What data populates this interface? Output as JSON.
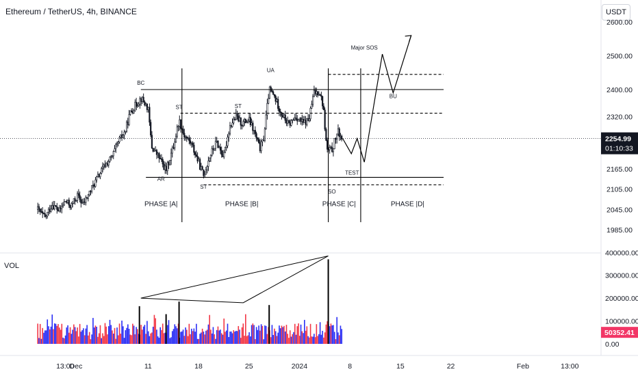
{
  "header": {
    "title": "Ethereum / TetherUS, 4h, BINANCE",
    "currency": "USDT"
  },
  "colors": {
    "up": "#26a69a",
    "down": "#ef5350",
    "candle": "#131722",
    "vol_blue": "#2a2ef5",
    "vol_red": "#f23645",
    "price_tag_bg": "#131722",
    "vol_tag_bg": "#f23666"
  },
  "chart_data": {
    "type": "candlestick",
    "price_axis": {
      "ticks": [
        {
          "value": 2600,
          "label": "2600.00"
        },
        {
          "value": 2500,
          "label": "2500.00"
        },
        {
          "value": 2400,
          "label": "2400.00"
        },
        {
          "value": 2320,
          "label": "2320.00"
        },
        {
          "value": 2165,
          "label": "2165.00"
        },
        {
          "value": 2105,
          "label": "2105.00"
        },
        {
          "value": 2045,
          "label": "2045.00"
        },
        {
          "value": 1985,
          "label": "1985.00"
        }
      ],
      "range": [
        1975,
        2610
      ]
    },
    "volume_axis": {
      "ticks": [
        {
          "value": 400000,
          "label": "400000.00"
        },
        {
          "value": 300000,
          "label": "300000.00"
        },
        {
          "value": 200000,
          "label": "200000.00"
        },
        {
          "value": 100000,
          "label": "100000.00"
        },
        {
          "value": 0,
          "label": "0.00"
        }
      ],
      "label": "VOL"
    },
    "time_axis": {
      "labels": [
        {
          "label": "13:00",
          "day": -0.5
        },
        {
          "label": "Dec",
          "day": 1
        },
        {
          "label": "11",
          "day": 11
        },
        {
          "label": "18",
          "day": 18
        },
        {
          "label": "25",
          "day": 25
        },
        {
          "label": "2024",
          "day": 32
        },
        {
          "label": "8",
          "day": 39
        },
        {
          "label": "15",
          "day": 46
        },
        {
          "label": "22",
          "day": 53
        },
        {
          "label": "Feb",
          "day": 63
        },
        {
          "label": "13:00",
          "day": 69.5
        }
      ]
    },
    "last_price": {
      "value": 2254.99,
      "label": "2254.99",
      "countdown": "01:10:33"
    },
    "last_volume": {
      "value": 50352.41,
      "label": "50352.41"
    },
    "price_path": [
      [
        -4.3,
        2045
      ],
      [
        -3.3,
        2020
      ],
      [
        -2.3,
        2060
      ],
      [
        -1.3,
        2040
      ],
      [
        -0.5,
        2070
      ],
      [
        0.3,
        2055
      ],
      [
        1.2,
        2085
      ],
      [
        2.0,
        2060
      ],
      [
        3.0,
        2100
      ],
      [
        4.0,
        2140
      ],
      [
        5.0,
        2175
      ],
      [
        6.0,
        2200
      ],
      [
        7.0,
        2250
      ],
      [
        7.8,
        2275
      ],
      [
        8.5,
        2330
      ],
      [
        9.3,
        2355
      ],
      [
        10.0,
        2375
      ],
      [
        10.5,
        2360
      ],
      [
        11.0,
        2345
      ],
      [
        11.5,
        2230
      ],
      [
        12.5,
        2200
      ],
      [
        13.5,
        2160
      ],
      [
        14.5,
        2230
      ],
      [
        15.3,
        2310
      ],
      [
        16.0,
        2265
      ],
      [
        17.0,
        2240
      ],
      [
        18.0,
        2185
      ],
      [
        18.7,
        2145
      ],
      [
        19.5,
        2200
      ],
      [
        20.5,
        2245
      ],
      [
        21.5,
        2200
      ],
      [
        22.3,
        2290
      ],
      [
        23.2,
        2320
      ],
      [
        24.0,
        2300
      ],
      [
        25.0,
        2310
      ],
      [
        25.8,
        2270
      ],
      [
        26.5,
        2225
      ],
      [
        27.0,
        2250
      ],
      [
        27.8,
        2400
      ],
      [
        28.5,
        2380
      ],
      [
        29.5,
        2330
      ],
      [
        30.5,
        2295
      ],
      [
        31.5,
        2320
      ],
      [
        32.5,
        2300
      ],
      [
        33.3,
        2310
      ],
      [
        34.0,
        2390
      ],
      [
        34.8,
        2395
      ],
      [
        35.3,
        2350
      ],
      [
        35.8,
        2220
      ],
      [
        36.5,
        2220
      ],
      [
        37.3,
        2275
      ],
      [
        38.0,
        2255
      ]
    ],
    "volume_bars_seed": 42,
    "volume_spikes": [
      {
        "day": 9.8,
        "value": 165000
      },
      {
        "day": 13.5,
        "value": 130000
      },
      {
        "day": 15.3,
        "value": 185000
      },
      {
        "day": 27.8,
        "value": 170000
      },
      {
        "day": 36.0,
        "value": 370000
      }
    ],
    "wyckoff_annotations": {
      "levels": [
        {
          "label": "BC line",
          "price": 2400,
          "from_day": 10,
          "to_day": 52,
          "style": "solid"
        },
        {
          "label": "UA line",
          "price": 2445,
          "from_day": 36,
          "to_day": 52,
          "style": "dashed"
        },
        {
          "label": "ST line",
          "price": 2330,
          "from_day": 15.5,
          "to_day": 52,
          "style": "dashed"
        },
        {
          "label": "AR line",
          "price": 2140,
          "from_day": 10.7,
          "to_day": 52,
          "style": "solid"
        },
        {
          "label": "Lower ST line",
          "price": 2118,
          "from_day": 18.7,
          "to_day": 52,
          "style": "dashed"
        }
      ],
      "phase_dividers_day": [
        15.7,
        36.0,
        40.5
      ],
      "labels": [
        {
          "text": "BC",
          "day": 10.0,
          "price": 2414
        },
        {
          "text": "ST",
          "day": 15.3,
          "price": 2342
        },
        {
          "text": "AR",
          "day": 12.8,
          "price": 2130
        },
        {
          "text": "ST",
          "day": 18.7,
          "price": 2106
        },
        {
          "text": "ST",
          "day": 23.5,
          "price": 2345
        },
        {
          "text": "UA",
          "day": 28.0,
          "price": 2452
        },
        {
          "text": "SO",
          "day": 36.5,
          "price": 2092
        },
        {
          "text": "TEST",
          "day": 39.3,
          "price": 2148
        },
        {
          "text": "Major SOS",
          "day": 41.0,
          "price": 2518
        },
        {
          "text": "BU",
          "day": 45.0,
          "price": 2375
        },
        {
          "text": "PHASE |A|",
          "day": 12.8,
          "price": 2055
        },
        {
          "text": "PHASE |B|",
          "day": 24.0,
          "price": 2055
        },
        {
          "text": "PHASE |C|",
          "day": 37.5,
          "price": 2055
        },
        {
          "text": "PHASE |D|",
          "day": 47.0,
          "price": 2055
        }
      ],
      "projection_path": [
        [
          38.0,
          2255
        ],
        [
          39.2,
          2210
        ],
        [
          40.0,
          2255
        ],
        [
          41.0,
          2185
        ],
        [
          43.5,
          2505
        ],
        [
          45.0,
          2390
        ],
        [
          47.5,
          2560
        ]
      ],
      "volume_wedge": [
        {
          "day": 10.0,
          "value": 200000
        },
        {
          "day": 24.2,
          "value": 180000
        },
        {
          "day": 36.0,
          "value": 385000
        }
      ]
    }
  }
}
